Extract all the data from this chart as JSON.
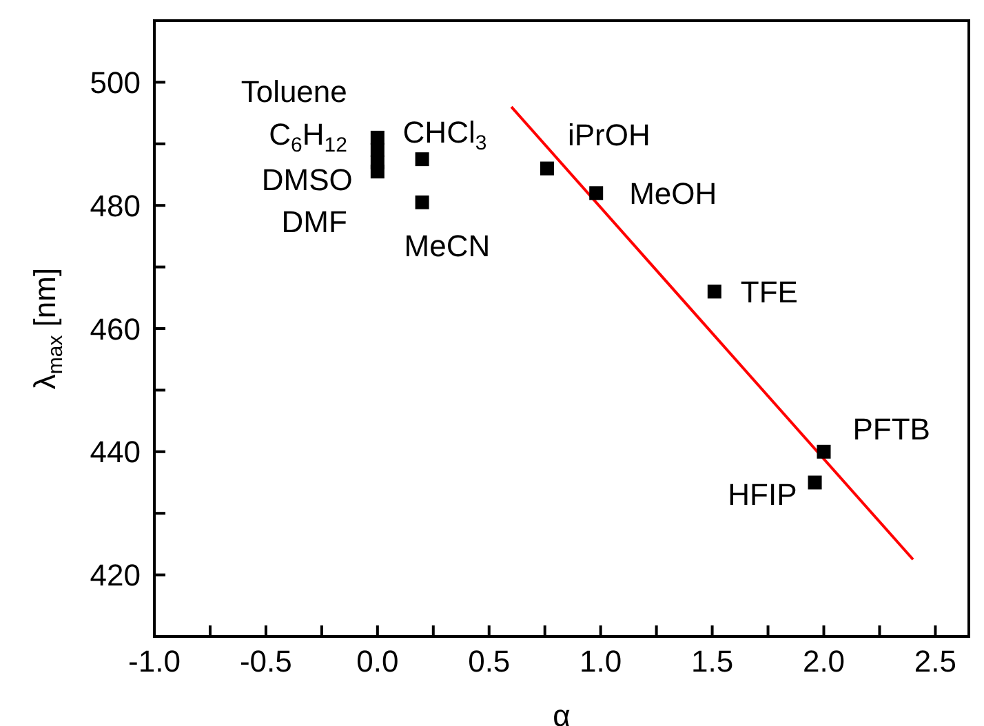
{
  "chart_data": {
    "type": "scatter",
    "xlabel": "α",
    "ylabel": "λ$_{max}$ [nm]",
    "xlim": [
      -1.0,
      2.65
    ],
    "ylim": [
      410,
      510
    ],
    "xticks": [
      {
        "value": -1.0,
        "label": "-1.0"
      },
      {
        "value": -0.75,
        "label": null
      },
      {
        "value": -0.5,
        "label": "-0.5"
      },
      {
        "value": -0.25,
        "label": null
      },
      {
        "value": 0,
        "label": "0.0"
      },
      {
        "value": 0.25,
        "label": null
      },
      {
        "value": 0.5,
        "label": "0.5"
      },
      {
        "value": 0.75,
        "label": null
      },
      {
        "value": 1.0,
        "label": "1.0"
      },
      {
        "value": 1.25,
        "label": null
      },
      {
        "value": 1.5,
        "label": "1.5"
      },
      {
        "value": 1.75,
        "label": null
      },
      {
        "value": 2.0,
        "label": "2.0"
      },
      {
        "value": 2.25,
        "label": null
      },
      {
        "value": 2.5,
        "label": "2.5"
      }
    ],
    "yticks": [
      {
        "value": 410,
        "label": null
      },
      420,
      {
        "value": 430,
        "label": null
      },
      440,
      {
        "value": 450,
        "label": null
      },
      460,
      {
        "value": 470,
        "label": null
      },
      480,
      {
        "value": 490,
        "label": null
      },
      500
    ],
    "grid": false,
    "legend": false,
    "series": [
      {
        "marker": "square",
        "color": "#000000",
        "x": [
          0,
          0,
          0,
          0,
          0.2,
          0.2,
          0.76,
          0.98,
          1.51,
          1.96,
          2.0
        ],
        "values": [
          491,
          489,
          487,
          485.5,
          487.5,
          480.5,
          486,
          482,
          466,
          435,
          440
        ]
      },
      {
        "type": "line",
        "color": "#ff0000",
        "x": [
          0.6,
          2.4
        ],
        "values": [
          496,
          422.5
        ]
      }
    ],
    "annotations": [
      {
        "text": "Toluene",
        "x": 0,
        "y": 491
      },
      {
        "text": "C$_{6}$H$_{12}$",
        "x": 0,
        "y": 489
      },
      {
        "text": "DMSO",
        "x": 0,
        "y": 487
      },
      {
        "text": "DMF",
        "x": 0,
        "y": 485.5
      },
      {
        "text": "CHCl$_{3}$",
        "x": 0.2,
        "y": 487.5
      },
      {
        "text": "MeCN",
        "x": 0.2,
        "y": 480.5
      },
      {
        "text": "iPrOH",
        "x": 0.76,
        "y": 486
      },
      {
        "text": "MeOH",
        "x": 0.98,
        "y": 482
      },
      {
        "text": "TFE",
        "x": 1.51,
        "y": 466
      },
      {
        "text": "HFIP",
        "x": 1.96,
        "y": 435
      },
      {
        "text": "PFTB",
        "x": 2.0,
        "y": 440
      }
    ]
  }
}
